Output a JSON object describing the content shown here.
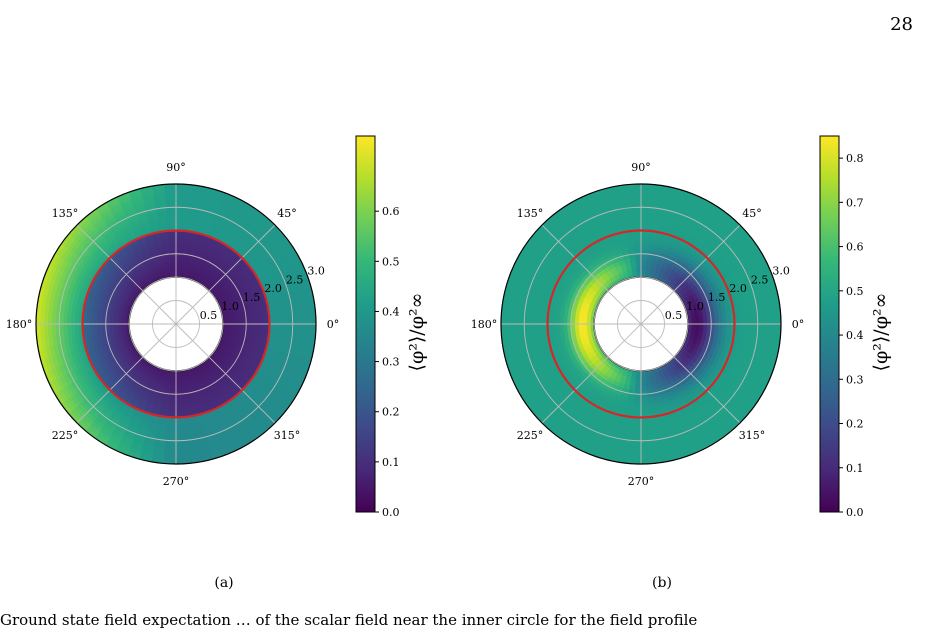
{
  "page_number": "28",
  "colormap": [
    "#440154",
    "#482878",
    "#3e4989",
    "#31688e",
    "#26828e",
    "#1f9e89",
    "#35b779",
    "#6ece58",
    "#b5de2b",
    "#fde725"
  ],
  "boundary_color": "#d62728",
  "chart_data": [
    {
      "type": "heatmap",
      "projection": "polar",
      "panel_label": "(a)",
      "theta_ticks": [
        "0°",
        "45°",
        "90°",
        "135°",
        "180°",
        "225°",
        "270°",
        "315°"
      ],
      "r_ticks": [
        "0.5",
        "1.0",
        "1.5",
        "2.0",
        "2.5",
        "3.0"
      ],
      "r_range": [
        1.0,
        3.0
      ],
      "boundary_radius": 2.0,
      "colorbar": {
        "label": "⟨φ²⟩/φ²∞",
        "range": [
          0.0,
          0.75
        ],
        "ticks": [
          "0.0",
          "0.1",
          "0.2",
          "0.3",
          "0.4",
          "0.5",
          "0.6"
        ]
      },
      "field_description": "low (~0.0-0.1) inside ring, highest (~0.7) near 180° at outer edge, ~0.35-0.5 elsewhere"
    },
    {
      "type": "heatmap",
      "projection": "polar",
      "panel_label": "(b)",
      "theta_ticks": [
        "0°",
        "45°",
        "90°",
        "135°",
        "180°",
        "225°",
        "270°",
        "315°"
      ],
      "r_ticks": [
        "0.5",
        "1.0",
        "1.5",
        "2.0",
        "2.5",
        "3.0"
      ],
      "r_range": [
        1.0,
        3.0
      ],
      "boundary_radius": 2.0,
      "colorbar": {
        "label": "⟨φ²⟩/φ²∞",
        "range": [
          0.0,
          0.85
        ],
        "ticks": [
          "0.0",
          "0.1",
          "0.2",
          "0.3",
          "0.4",
          "0.5",
          "0.6",
          "0.7",
          "0.8"
        ]
      },
      "field_description": "uniform ~0.5 outside, bright crescent (~0.85) near 180° close to inner circle, dark (~0.0) near 0° inside ring"
    }
  ],
  "bottom_text": "Ground state field expectation … of the scalar field near the inner circle for the field profile"
}
